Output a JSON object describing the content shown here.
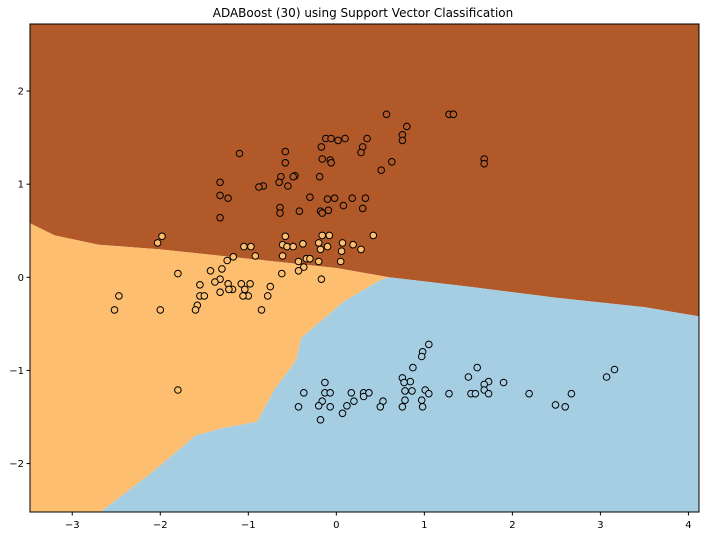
{
  "chart_data": {
    "type": "scatter",
    "title": "ADABoost (30) using Support Vector Classification",
    "xlabel": "",
    "ylabel": "",
    "xlim": [
      -3.48,
      4.12
    ],
    "ylim": [
      -2.52,
      2.72
    ],
    "xticks": [
      -3,
      -2,
      -1,
      0,
      1,
      2,
      3,
      4
    ],
    "yticks": [
      -2,
      -1,
      0,
      1,
      2
    ],
    "xtick_labels": [
      "−3",
      "−2",
      "−1",
      "0",
      "1",
      "2",
      "3",
      "4"
    ],
    "ytick_labels": [
      "−2",
      "−1",
      "0",
      "1",
      "2"
    ],
    "grid": false,
    "regions": [
      {
        "name": "class-upper",
        "color": "#b15928"
      },
      {
        "name": "class-left",
        "color": "#fdbf6f"
      },
      {
        "name": "class-lower",
        "color": "#a6cee3"
      }
    ],
    "boundaries": {
      "upper_lower": [
        [
          -3.48,
          0.58
        ],
        [
          -3.2,
          0.45
        ],
        [
          -2.7,
          0.35
        ],
        [
          -2.0,
          0.3
        ],
        [
          -1.0,
          0.2
        ],
        [
          0.0,
          0.1
        ],
        [
          0.6,
          0.0
        ],
        [
          1.5,
          -0.1
        ],
        [
          2.5,
          -0.22
        ],
        [
          3.5,
          -0.32
        ],
        [
          4.12,
          -0.42
        ]
      ],
      "left_lower": [
        [
          0.6,
          0.0
        ],
        [
          0.5,
          -0.03
        ],
        [
          0.1,
          -0.25
        ],
        [
          -0.4,
          -0.65
        ],
        [
          -0.45,
          -0.87
        ],
        [
          -0.5,
          -0.95
        ],
        [
          -0.7,
          -1.2
        ],
        [
          -0.9,
          -1.55
        ],
        [
          -1.3,
          -1.62
        ],
        [
          -1.6,
          -1.7
        ],
        [
          -2.1,
          -2.1
        ],
        [
          -2.68,
          -2.52
        ]
      ]
    },
    "series": [
      {
        "color": "#b15928",
        "points": [
          [
            0.57,
            1.75
          ],
          [
            1.28,
            1.75
          ],
          [
            1.33,
            1.75
          ],
          [
            0.8,
            1.62
          ],
          [
            0.75,
            1.53
          ],
          [
            0.75,
            1.47
          ],
          [
            -0.12,
            1.49
          ],
          [
            -0.06,
            1.49
          ],
          [
            0.02,
            1.47
          ],
          [
            0.1,
            1.49
          ],
          [
            0.3,
            1.4
          ],
          [
            0.35,
            1.49
          ],
          [
            0.28,
            1.34
          ],
          [
            -0.17,
            1.4
          ],
          [
            -0.58,
            1.35
          ],
          [
            -1.1,
            1.33
          ],
          [
            -0.16,
            1.27
          ],
          [
            -0.07,
            1.26
          ],
          [
            -0.06,
            1.23
          ],
          [
            -0.58,
            1.23
          ],
          [
            0.63,
            1.24
          ],
          [
            0.51,
            1.15
          ],
          [
            1.68,
            1.27
          ],
          [
            1.68,
            1.22
          ],
          [
            -0.63,
            1.08
          ],
          [
            -0.19,
            1.08
          ],
          [
            -0.47,
            1.09
          ],
          [
            -0.49,
            1.08
          ],
          [
            -0.65,
            1.02
          ],
          [
            -0.55,
            0.98
          ],
          [
            -0.83,
            0.98
          ],
          [
            -0.88,
            0.97
          ],
          [
            -1.32,
            1.02
          ],
          [
            -1.32,
            0.88
          ],
          [
            -1.23,
            0.85
          ],
          [
            -0.3,
            0.86
          ],
          [
            -0.02,
            0.85
          ],
          [
            -0.1,
            0.84
          ],
          [
            0.18,
            0.85
          ],
          [
            0.33,
            0.85
          ],
          [
            0.08,
            0.77
          ],
          [
            0.3,
            0.74
          ],
          [
            -0.09,
            0.72
          ],
          [
            -0.18,
            0.71
          ],
          [
            -0.16,
            0.69
          ],
          [
            -0.42,
            0.71
          ],
          [
            -0.64,
            0.75
          ],
          [
            -0.64,
            0.69
          ],
          [
            -1.32,
            0.64
          ]
        ]
      },
      {
        "color": "#fdbf6f",
        "points": [
          [
            -1.98,
            0.44
          ],
          [
            -2.03,
            0.37
          ],
          [
            0.42,
            0.45
          ],
          [
            -0.16,
            0.45
          ],
          [
            -0.08,
            0.45
          ],
          [
            -0.58,
            0.44
          ],
          [
            -0.2,
            0.37
          ],
          [
            0.07,
            0.37
          ],
          [
            0.19,
            0.35
          ],
          [
            -0.38,
            0.36
          ],
          [
            -0.61,
            0.35
          ],
          [
            -0.56,
            0.33
          ],
          [
            -0.49,
            0.33
          ],
          [
            -0.1,
            0.33
          ],
          [
            0.28,
            0.3
          ],
          [
            -0.18,
            0.3
          ],
          [
            0.06,
            0.28
          ],
          [
            -0.97,
            0.33
          ],
          [
            -1.05,
            0.33
          ],
          [
            -0.92,
            0.23
          ],
          [
            -0.61,
            0.23
          ],
          [
            -0.34,
            0.2
          ],
          [
            -0.3,
            0.2
          ],
          [
            -0.43,
            0.17
          ],
          [
            -0.37,
            0.11
          ],
          [
            -0.43,
            0.07
          ],
          [
            -0.2,
            0.17
          ],
          [
            0.05,
            0.17
          ],
          [
            -1.17,
            0.22
          ],
          [
            -1.24,
            0.18
          ],
          [
            -1.3,
            0.09
          ],
          [
            -1.43,
            0.07
          ],
          [
            -1.32,
            -0.02
          ],
          [
            -1.23,
            -0.07
          ],
          [
            -1.38,
            -0.05
          ],
          [
            -1.55,
            -0.08
          ],
          [
            -1.55,
            -0.2
          ],
          [
            -1.5,
            -0.2
          ],
          [
            -1.08,
            -0.07
          ],
          [
            -1.04,
            -0.13
          ],
          [
            -0.98,
            -0.07
          ],
          [
            -1.18,
            -0.13
          ],
          [
            -1.22,
            -0.13
          ],
          [
            -0.75,
            -0.1
          ],
          [
            -0.78,
            -0.2
          ],
          [
            -1.0,
            -0.2
          ],
          [
            -1.06,
            -0.2
          ],
          [
            -1.58,
            -0.3
          ],
          [
            -1.6,
            -0.35
          ],
          [
            -2.0,
            -0.35
          ],
          [
            -2.52,
            -0.35
          ],
          [
            -2.47,
            -0.2
          ],
          [
            -1.8,
            0.04
          ],
          [
            -0.62,
            0.04
          ],
          [
            -0.17,
            -0.02
          ],
          [
            -0.85,
            -0.35
          ],
          [
            -1.32,
            -0.16
          ],
          [
            -1.8,
            -1.21
          ]
        ]
      },
      {
        "color": "#a6cee3",
        "points": [
          [
            1.05,
            -0.72
          ],
          [
            0.98,
            -0.8
          ],
          [
            0.97,
            -0.85
          ],
          [
            0.87,
            -0.97
          ],
          [
            1.6,
            -0.97
          ],
          [
            1.5,
            -1.07
          ],
          [
            3.16,
            -0.99
          ],
          [
            3.07,
            -1.07
          ],
          [
            0.75,
            -1.08
          ],
          [
            0.84,
            -1.12
          ],
          [
            0.77,
            -1.13
          ],
          [
            1.73,
            -1.12
          ],
          [
            1.68,
            -1.15
          ],
          [
            1.9,
            -1.13
          ],
          [
            -0.13,
            -1.13
          ],
          [
            1.68,
            -1.21
          ],
          [
            1.01,
            -1.21
          ],
          [
            0.78,
            -1.22
          ],
          [
            0.86,
            -1.22
          ],
          [
            -0.37,
            -1.24
          ],
          [
            -0.13,
            -1.24
          ],
          [
            -0.07,
            -1.24
          ],
          [
            0.17,
            -1.24
          ],
          [
            0.31,
            -1.24
          ],
          [
            0.37,
            -1.24
          ],
          [
            0.31,
            -1.28
          ],
          [
            1.05,
            -1.25
          ],
          [
            1.28,
            -1.25
          ],
          [
            1.53,
            -1.25
          ],
          [
            1.58,
            -1.25
          ],
          [
            1.73,
            -1.25
          ],
          [
            2.19,
            -1.25
          ],
          [
            2.67,
            -1.25
          ],
          [
            0.2,
            -1.33
          ],
          [
            0.53,
            -1.33
          ],
          [
            0.78,
            -1.32
          ],
          [
            -0.16,
            -1.33
          ],
          [
            0.97,
            -1.32
          ],
          [
            -0.43,
            -1.39
          ],
          [
            -0.2,
            -1.38
          ],
          [
            -0.07,
            -1.39
          ],
          [
            0.12,
            -1.38
          ],
          [
            0.5,
            -1.39
          ],
          [
            0.75,
            -1.39
          ],
          [
            0.98,
            -1.39
          ],
          [
            2.49,
            -1.37
          ],
          [
            2.6,
            -1.39
          ],
          [
            0.07,
            -1.46
          ],
          [
            -0.18,
            -1.53
          ]
        ]
      }
    ]
  }
}
